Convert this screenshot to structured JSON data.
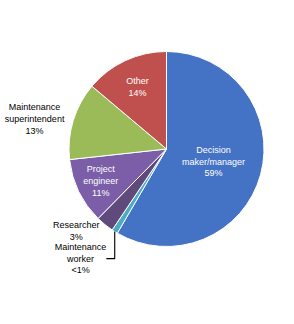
{
  "chart_data": {
    "type": "pie",
    "categories": [
      "Decision\nmaker/manager",
      "Maintenance\nworker",
      "Researcher",
      "Project\nengineer",
      "Maintenance\nsuperintendent",
      "Other"
    ],
    "values": [
      59,
      1,
      3,
      11,
      13,
      14
    ],
    "value_labels": [
      "59%",
      "<1%",
      "3%",
      "11%",
      "13%",
      "14%"
    ],
    "colors": [
      "#4472C4",
      "#4BACC6",
      "#604A7B",
      "#7B5EA7",
      "#9BBB59",
      "#C0504D"
    ],
    "data_labels": true
  }
}
